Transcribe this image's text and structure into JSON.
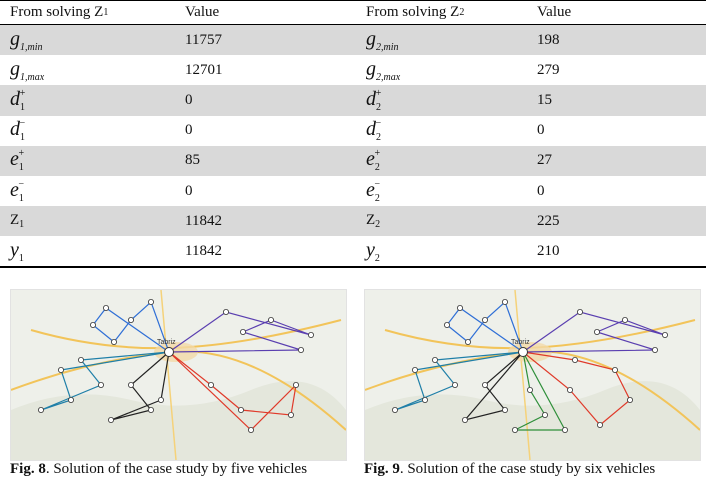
{
  "table": {
    "headers": [
      "From solving Z",
      "1",
      "Value",
      "From solving Z",
      "2",
      "Value"
    ],
    "header_cells": {
      "col1_main": "From solving Z",
      "col1_sub": "1",
      "col2": "Value",
      "col3_main": "From solving Z",
      "col3_sub": "2",
      "col4": "Value"
    },
    "rows": [
      {
        "l_sym": "g",
        "l_sub": "1,min",
        "l_sup": "",
        "l_val": "11757",
        "r_sym": "g",
        "r_sub": "2,min",
        "r_sup": "",
        "r_val": "198"
      },
      {
        "l_sym": "g",
        "l_sub": "1,max",
        "l_sup": "",
        "l_val": "12701",
        "r_sym": "g",
        "r_sub": "2,max",
        "r_sup": "",
        "r_val": "279"
      },
      {
        "l_sym": "d",
        "l_sub": "1",
        "l_sup": "+",
        "l_val": "0",
        "r_sym": "d",
        "r_sub": "2",
        "r_sup": "+",
        "r_val": "15"
      },
      {
        "l_sym": "d",
        "l_sub": "1",
        "l_sup": "−",
        "l_val": "0",
        "r_sym": "d",
        "r_sub": "2",
        "r_sup": "−",
        "r_val": "0"
      },
      {
        "l_sym": "e",
        "l_sub": "1",
        "l_sup": "+",
        "l_val": "85",
        "r_sym": "e",
        "r_sub": "2",
        "r_sup": "+",
        "r_val": "27"
      },
      {
        "l_sym": "e",
        "l_sub": "1",
        "l_sup": "−",
        "l_val": "0",
        "r_sym": "e",
        "r_sub": "2",
        "r_sup": "−",
        "r_val": "0"
      },
      {
        "l_sym": "Z",
        "l_sub": "1",
        "l_sup": "",
        "l_val": "11842",
        "r_sym": "Z",
        "r_sub": "2",
        "r_sup": "",
        "r_val": "225"
      },
      {
        "l_sym": "y",
        "l_sub": "1",
        "l_sup": "",
        "l_val": "11842",
        "r_sym": "y",
        "r_sub": "2",
        "r_sup": "",
        "r_val": "210"
      }
    ]
  },
  "figures": [
    {
      "label": "Fig. 8",
      "caption": ". Solution of the case study by five vehicles",
      "center_label": "Tabriz"
    },
    {
      "label": "Fig. 9",
      "caption": ". Solution of the case study by six vehicles",
      "center_label": "Tabriz"
    }
  ],
  "colors": {
    "row_shade": "#d9d9d9",
    "route_blue": "#2f6fd6",
    "route_purple": "#5a3fb0",
    "route_red": "#e03a2a",
    "route_black": "#222222",
    "route_green": "#2f8f3a",
    "route_teal": "#1f7fa8",
    "route_gray": "#444444"
  }
}
